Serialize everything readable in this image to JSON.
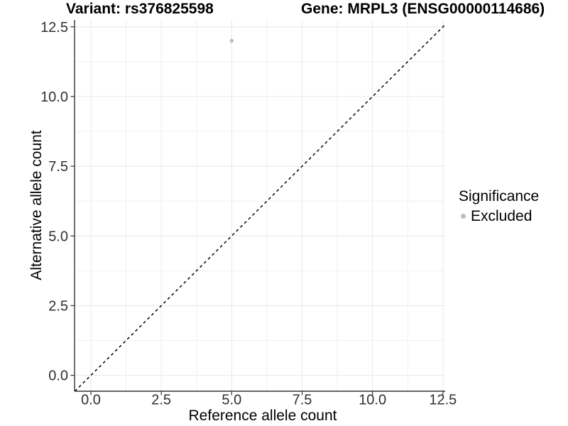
{
  "titles": {
    "variant": "Variant: rs376825598",
    "gene": "Gene: MRPL3 (ENSG00000114686)"
  },
  "chart_data": {
    "type": "scatter",
    "title_left": "Variant: rs376825598",
    "title_right": "Gene: MRPL3 (ENSG00000114686)",
    "xlabel": "Reference allele count",
    "ylabel": "Alternative allele count",
    "x_range": [
      -0.58,
      12.58
    ],
    "y_range": [
      -0.57,
      12.75
    ],
    "x_tick_values": [
      0,
      2.5,
      5,
      7.5,
      10,
      12.5
    ],
    "x_tick_labels": [
      "0.0",
      "2.5",
      "5.0",
      "7.5",
      "10.0",
      "12.5"
    ],
    "y_tick_values": [
      0,
      2.5,
      5,
      7.5,
      10,
      12.5
    ],
    "y_tick_labels": [
      "0.0",
      "2.5",
      "5.0",
      "7.5",
      "10.0",
      "12.5"
    ],
    "minor_tick_values": [
      1.25,
      3.75,
      6.25,
      8.75,
      11.25
    ],
    "grid": true,
    "points": [
      {
        "x": 5,
        "y": 12,
        "significance": "Excluded"
      }
    ],
    "identity_line": {
      "slope": 1,
      "intercept": 0,
      "style": "dashed",
      "color": "#000000"
    },
    "legend": {
      "title": "Significance",
      "position": "right",
      "entries": [
        {
          "label": "Excluded",
          "color": "#bdbdbd"
        }
      ]
    },
    "colors": {
      "point": "#bdbdbd",
      "grid_major": "#e8e8e8",
      "grid_minor": "#f0f0f0",
      "axis": "#333333",
      "tick_text": "#303030"
    }
  }
}
